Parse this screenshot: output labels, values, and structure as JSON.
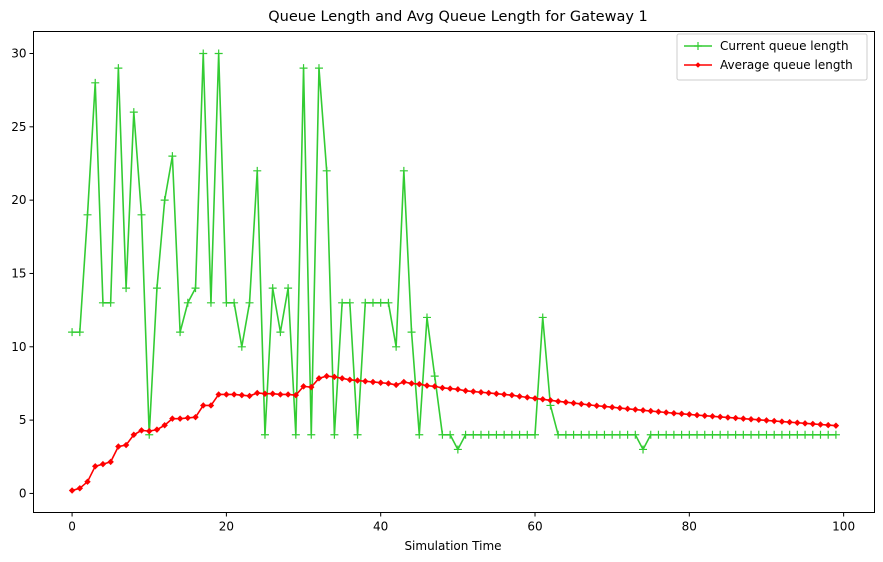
{
  "chart_data": {
    "type": "line",
    "title": "Queue Length and Avg Queue Length for Gateway 1",
    "xlabel": "Simulation Time",
    "ylabel": "",
    "xlim": [
      -5,
      104
    ],
    "ylim": [
      -1.3,
      31.5
    ],
    "xticks": [
      0,
      20,
      40,
      60,
      80,
      100
    ],
    "yticks": [
      0,
      5,
      10,
      15,
      20,
      25,
      30
    ],
    "grid": false,
    "legend_position": "top-right",
    "x": [
      0,
      1,
      2,
      3,
      4,
      5,
      6,
      7,
      8,
      9,
      10,
      11,
      12,
      13,
      14,
      15,
      16,
      17,
      18,
      19,
      20,
      21,
      22,
      23,
      24,
      25,
      26,
      27,
      28,
      29,
      30,
      31,
      32,
      33,
      34,
      35,
      36,
      37,
      38,
      39,
      40,
      41,
      42,
      43,
      44,
      45,
      46,
      47,
      48,
      49,
      50,
      51,
      52,
      53,
      54,
      55,
      56,
      57,
      58,
      59,
      60,
      61,
      62,
      63,
      64,
      65,
      66,
      67,
      68,
      69,
      70,
      71,
      72,
      73,
      74,
      75,
      76,
      77,
      78,
      79,
      80,
      81,
      82,
      83,
      84,
      85,
      86,
      87,
      88,
      89,
      90,
      91,
      92,
      93,
      94,
      95,
      96,
      97,
      98,
      99
    ],
    "series": [
      {
        "name": "Current queue length",
        "color": "#33cc33",
        "marker": "plus",
        "values": [
          11,
          11,
          19,
          28,
          13,
          13,
          29,
          14,
          26,
          19,
          4,
          14,
          20,
          23,
          11,
          13,
          14,
          30,
          13,
          30,
          13,
          13,
          10,
          13,
          22,
          4,
          14,
          11,
          14,
          4,
          29,
          4,
          29,
          22,
          4,
          13,
          13,
          4,
          13,
          13,
          13,
          13,
          10,
          22,
          11,
          4,
          12,
          8,
          4,
          4,
          3,
          4,
          4,
          4,
          4,
          4,
          4,
          4,
          4,
          4,
          4,
          12,
          6,
          4,
          4,
          4,
          4,
          4,
          4,
          4,
          4,
          4,
          4,
          4,
          3,
          4,
          4,
          4,
          4,
          4,
          4,
          4,
          4,
          4,
          4,
          4,
          4,
          4,
          4,
          4,
          4,
          4,
          4,
          4,
          4,
          4,
          4,
          4,
          4,
          4
        ]
      },
      {
        "name": "Average queue length",
        "color": "#ff0000",
        "marker": "diamond",
        "values": [
          0.2,
          0.35,
          0.8,
          1.85,
          2.0,
          2.15,
          3.2,
          3.3,
          4.0,
          4.3,
          4.25,
          4.35,
          4.65,
          5.1,
          5.1,
          5.15,
          5.2,
          6.0,
          6.0,
          6.75,
          6.75,
          6.75,
          6.7,
          6.65,
          6.85,
          6.8,
          6.8,
          6.75,
          6.75,
          6.7,
          7.3,
          7.25,
          7.85,
          8.0,
          7.95,
          7.85,
          7.75,
          7.7,
          7.65,
          7.6,
          7.55,
          7.5,
          7.4,
          7.6,
          7.5,
          7.45,
          7.35,
          7.3,
          7.2,
          7.15,
          7.1,
          7.0,
          6.95,
          6.9,
          6.85,
          6.8,
          6.75,
          6.7,
          6.62,
          6.55,
          6.48,
          6.42,
          6.35,
          6.28,
          6.22,
          6.16,
          6.1,
          6.04,
          5.98,
          5.93,
          5.88,
          5.82,
          5.77,
          5.72,
          5.67,
          5.62,
          5.57,
          5.52,
          5.47,
          5.43,
          5.39,
          5.34,
          5.3,
          5.26,
          5.22,
          5.18,
          5.14,
          5.1,
          5.06,
          5.02,
          4.98,
          4.94,
          4.9,
          4.86,
          4.82,
          4.78,
          4.74,
          4.7,
          4.66,
          4.62
        ]
      }
    ]
  }
}
